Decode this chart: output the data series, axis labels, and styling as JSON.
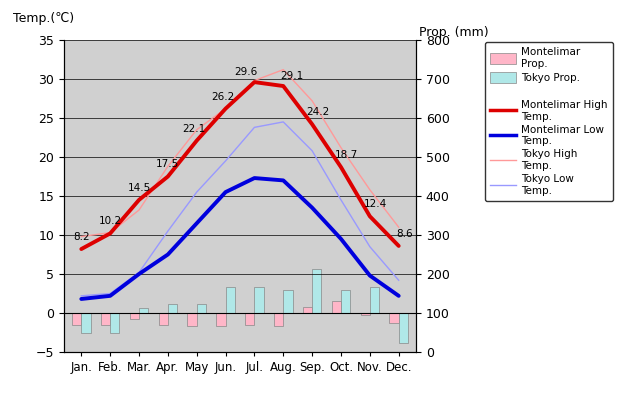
{
  "months": [
    "Jan.",
    "Feb.",
    "Mar.",
    "Apr.",
    "May",
    "Jun.",
    "Jul.",
    "Aug.",
    "Sep.",
    "Oct.",
    "Nov.",
    "Dec."
  ],
  "montelimar_high": [
    8.2,
    10.2,
    14.5,
    17.5,
    22.1,
    26.2,
    29.6,
    29.1,
    24.2,
    18.7,
    12.4,
    8.6
  ],
  "montelimar_low": [
    1.8,
    2.2,
    5.0,
    7.5,
    11.5,
    15.5,
    17.3,
    17.0,
    13.5,
    9.5,
    4.8,
    2.2
  ],
  "tokyo_high": [
    9.8,
    10.3,
    13.2,
    18.8,
    23.5,
    26.2,
    29.8,
    31.2,
    27.2,
    21.2,
    15.8,
    11.0
  ],
  "tokyo_low": [
    2.2,
    2.5,
    5.2,
    10.5,
    15.5,
    19.5,
    23.8,
    24.5,
    20.8,
    14.5,
    8.5,
    4.2
  ],
  "montelimar_precip_bar": [
    -1.5,
    -1.5,
    -0.8,
    -1.5,
    -1.7,
    -1.7,
    -1.5,
    -1.7,
    0.8,
    1.6,
    -0.2,
    -1.3
  ],
  "tokyo_precip_bar": [
    -2.5,
    -2.5,
    0.6,
    1.2,
    1.2,
    3.3,
    3.3,
    3.0,
    5.6,
    3.0,
    3.3,
    -3.8
  ],
  "temp_ylim": [
    -5,
    35
  ],
  "precip_ylim": [
    0,
    800
  ],
  "bar_width": 0.32,
  "bg_color": "#d0d0d0",
  "montelimar_high_color": "#dd0000",
  "montelimar_low_color": "#0000dd",
  "tokyo_high_color": "#ff9999",
  "tokyo_low_color": "#9999ff",
  "montelimar_precip_color": "#ffb6c8",
  "tokyo_precip_color": "#b0e8e8",
  "grid_color": "#888888",
  "title_left": "Temp.(℃)",
  "title_right": "Prop. (mm)"
}
